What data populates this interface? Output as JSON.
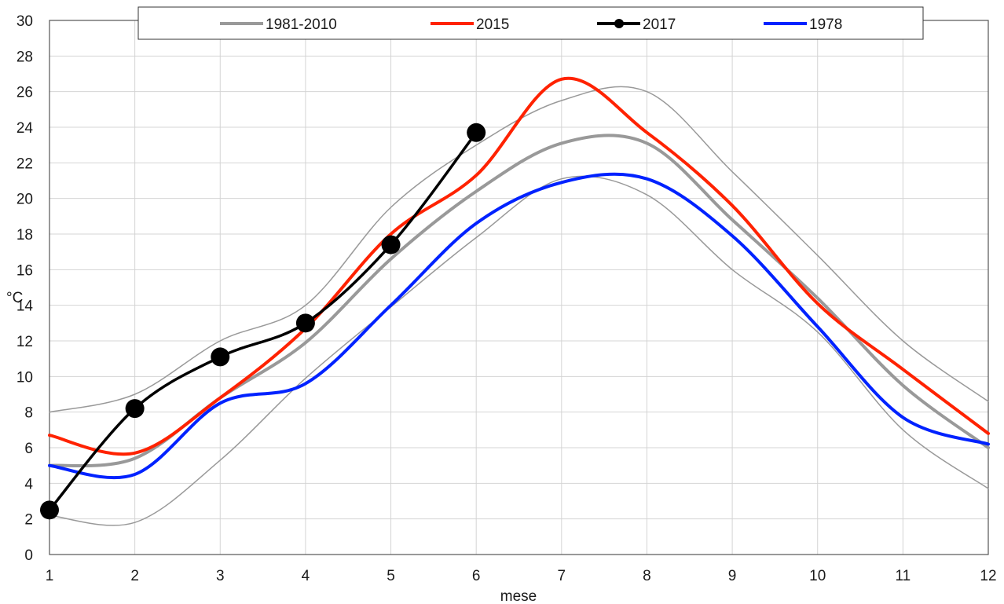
{
  "chart_data": {
    "type": "line",
    "title": "",
    "xlabel": "mese",
    "ylabel": "°C",
    "xlim": [
      1,
      12
    ],
    "ylim": [
      0,
      30
    ],
    "x_ticks": [
      1,
      2,
      3,
      4,
      5,
      6,
      7,
      8,
      9,
      10,
      11,
      12
    ],
    "y_ticks": [
      0,
      2,
      4,
      6,
      8,
      10,
      12,
      14,
      16,
      18,
      20,
      22,
      24,
      26,
      28,
      30
    ],
    "grid": true,
    "legend_position": "top",
    "legend": [
      {
        "label": "1981-2010",
        "color": "#999999",
        "marker": false
      },
      {
        "label": "2015",
        "color": "#ff2200",
        "marker": false
      },
      {
        "label": "2017",
        "color": "#000000",
        "marker": true
      },
      {
        "label": "1978",
        "color": "#0022ff",
        "marker": false
      }
    ],
    "series": [
      {
        "name": "1981-2010",
        "color": "#999999",
        "x": [
          1,
          2,
          3,
          4,
          5,
          6,
          7,
          8,
          9,
          10,
          11,
          12
        ],
        "y": [
          5.0,
          5.4,
          8.8,
          11.9,
          16.6,
          20.4,
          23.1,
          23.1,
          18.8,
          14.4,
          9.5,
          6.0
        ]
      },
      {
        "name": "",
        "color": "#999999",
        "x": [
          1,
          2,
          3,
          4,
          5,
          6,
          7,
          8,
          9,
          10,
          11,
          12
        ],
        "y": [
          8.0,
          9.0,
          12.0,
          14.0,
          19.5,
          23.0,
          25.5,
          26.0,
          21.5,
          16.8,
          12.0,
          8.6
        ]
      },
      {
        "name": "",
        "color": "#999999",
        "x": [
          1,
          2,
          3,
          4,
          5,
          6,
          7,
          8,
          9,
          10,
          11,
          12
        ],
        "y": [
          2.2,
          1.8,
          5.3,
          9.9,
          13.9,
          17.8,
          21.1,
          20.2,
          16.0,
          12.5,
          7.0,
          3.7
        ]
      },
      {
        "name": "2015",
        "color": "#ff2200",
        "x": [
          1,
          2,
          3,
          4,
          5,
          6,
          7,
          8,
          9,
          10,
          11,
          12
        ],
        "y": [
          6.7,
          5.7,
          8.8,
          12.7,
          18.0,
          21.3,
          26.7,
          23.7,
          19.6,
          14.1,
          10.4,
          6.8
        ]
      },
      {
        "name": "1978",
        "color": "#0022ff",
        "x": [
          1,
          2,
          3,
          4,
          5,
          6,
          7,
          8,
          9,
          10,
          11,
          12
        ],
        "y": [
          5.0,
          4.5,
          8.5,
          9.6,
          14.0,
          18.6,
          20.9,
          21.1,
          17.9,
          12.8,
          7.7,
          6.2
        ]
      },
      {
        "name": "2017",
        "color": "#000000",
        "marker": true,
        "x": [
          1,
          2,
          3,
          4,
          5,
          6
        ],
        "y": [
          2.5,
          8.2,
          11.1,
          13.0,
          17.4,
          23.7
        ]
      }
    ]
  }
}
